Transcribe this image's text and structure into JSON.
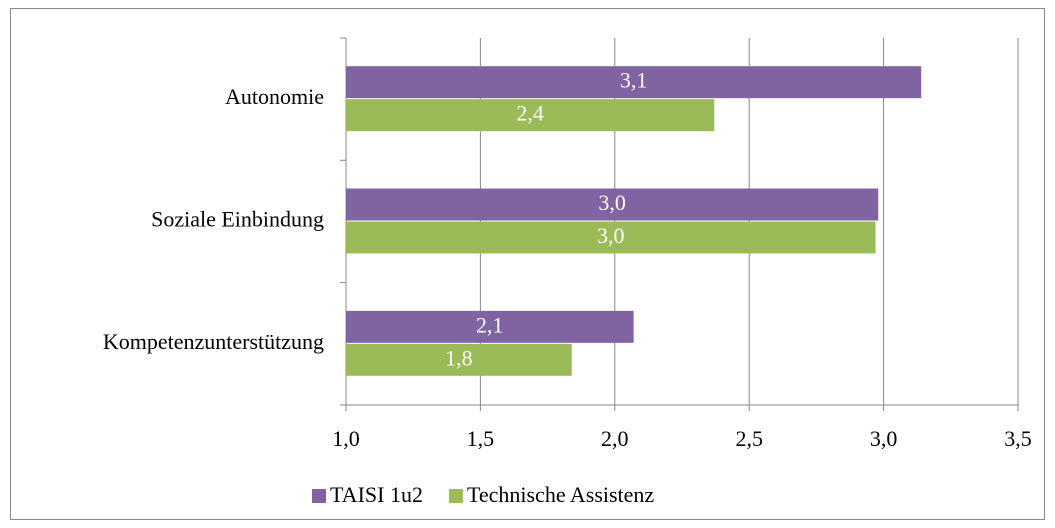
{
  "chart_data": {
    "type": "bar",
    "orientation": "horizontal",
    "categories": [
      "Autonomie",
      "Soziale Einbindung",
      "Kompetenzunterstützung"
    ],
    "series": [
      {
        "name": "TAISI 1u2",
        "color": "#8064a2",
        "values": [
          3.14,
          2.98,
          2.07
        ],
        "value_labels": [
          "3,1",
          "3,0",
          "2,1"
        ]
      },
      {
        "name": "Technische Assistenz",
        "color": "#9bbb59",
        "values": [
          2.37,
          2.97,
          1.84
        ],
        "value_labels": [
          "2,4",
          "3,0",
          "1,8"
        ]
      }
    ],
    "xlim": [
      1,
      3.5
    ],
    "xticks": [
      {
        "value": 1,
        "label": "1,0"
      },
      {
        "value": 1.5,
        "label": "1,5"
      },
      {
        "value": 2,
        "label": "2,0"
      },
      {
        "value": 2.5,
        "label": "2,5"
      },
      {
        "value": 3,
        "label": "3,0"
      },
      {
        "value": 3.5,
        "label": "3,5"
      }
    ],
    "grid": true,
    "legend": "bottom"
  }
}
